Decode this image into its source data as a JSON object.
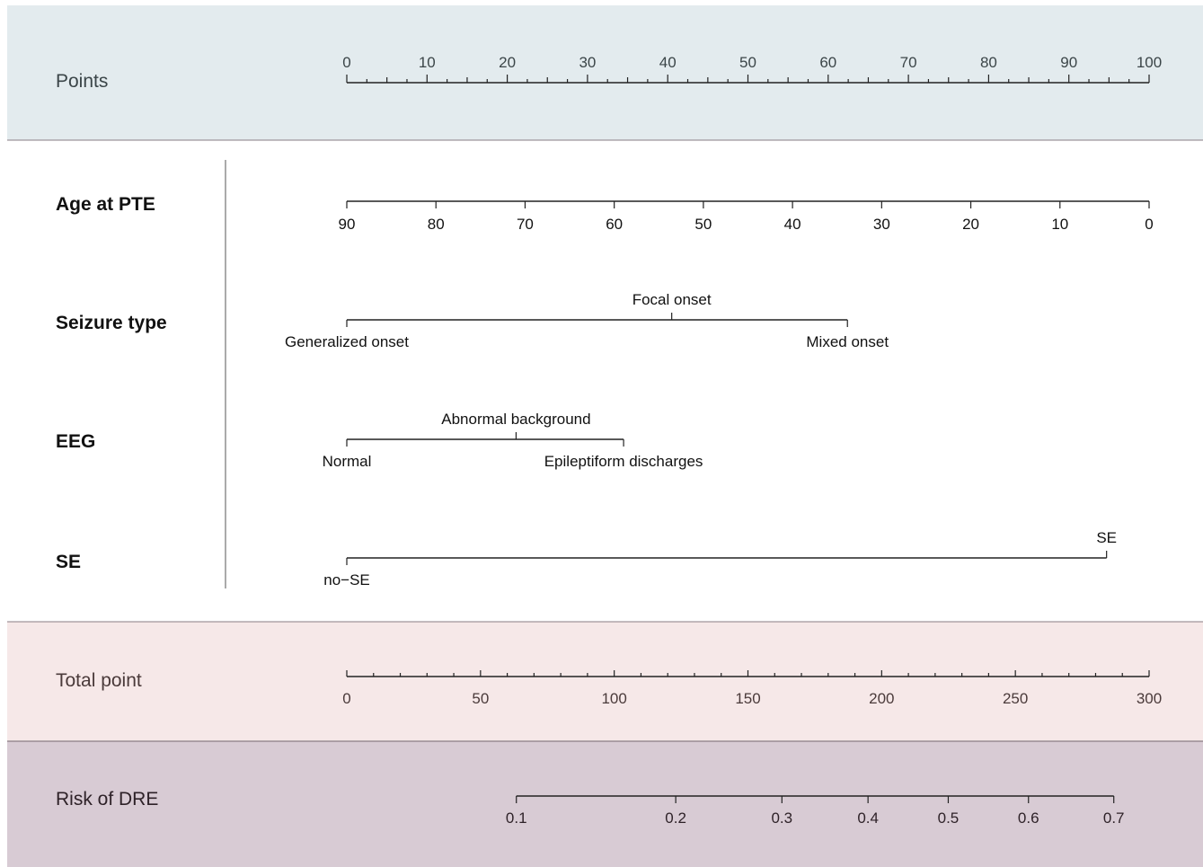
{
  "colors": {
    "points_band": "#e3ebee",
    "total_band": "#f6e8e8",
    "risk_band": "#d8cbd4",
    "band_border": "#8a7e84",
    "axis": "#222222",
    "points_text": "#3b4548",
    "total_text": "#4a3a3a",
    "risk_text": "#2e2228"
  },
  "chart_data": {
    "type": "nomogram",
    "rows": [
      {
        "id": "points",
        "label": "Points",
        "scale": {
          "min": 0,
          "max": 100,
          "major_step": 10,
          "minor_step": 2.5
        },
        "tick_labels": [
          "0",
          "10",
          "20",
          "30",
          "40",
          "50",
          "60",
          "70",
          "80",
          "90",
          "100"
        ]
      },
      {
        "id": "age",
        "label": "Age at PTE",
        "variable_range": [
          90,
          0
        ],
        "points_range": [
          0,
          100
        ],
        "tick_values": [
          90,
          80,
          70,
          60,
          50,
          40,
          30,
          20,
          10,
          0
        ],
        "tick_labels": [
          "90",
          "80",
          "70",
          "60",
          "50",
          "40",
          "30",
          "20",
          "10",
          "0"
        ]
      },
      {
        "id": "seizure",
        "label": "Seizure type",
        "categories": [
          {
            "label": "Generalized onset",
            "points": 0,
            "label_side": "below"
          },
          {
            "label": "Focal onset",
            "points": 40.5,
            "label_side": "above"
          },
          {
            "label": "Mixed onset",
            "points": 62.4,
            "label_side": "below"
          }
        ]
      },
      {
        "id": "eeg",
        "label": "EEG",
        "categories": [
          {
            "label": "Normal",
            "points": 0,
            "label_side": "below"
          },
          {
            "label": "Abnormal background",
            "points": 21.1,
            "label_side": "above"
          },
          {
            "label": "Epileptiform discharges",
            "points": 34.5,
            "label_side": "below"
          }
        ]
      },
      {
        "id": "se",
        "label": "SE",
        "categories": [
          {
            "label": "no−SE",
            "points": 0,
            "label_side": "below"
          },
          {
            "label": "SE",
            "points": 94.7,
            "label_side": "above"
          }
        ]
      },
      {
        "id": "total",
        "label": "Total point",
        "scale": {
          "min": 0,
          "max": 300,
          "major_step": 50,
          "minor_step": 10
        },
        "tick_labels": [
          "0",
          "50",
          "100",
          "150",
          "200",
          "250",
          "300"
        ]
      },
      {
        "id": "risk",
        "label": "Risk of DRE",
        "ticks": [
          {
            "label": "0.1",
            "total_points": 63.4
          },
          {
            "label": "0.2",
            "total_points": 123.0
          },
          {
            "label": "0.3",
            "total_points": 162.7
          },
          {
            "label": "0.4",
            "total_points": 194.9
          },
          {
            "label": "0.5",
            "total_points": 224.9
          },
          {
            "label": "0.6",
            "total_points": 254.9
          },
          {
            "label": "0.7",
            "total_points": 286.8
          }
        ]
      }
    ]
  }
}
